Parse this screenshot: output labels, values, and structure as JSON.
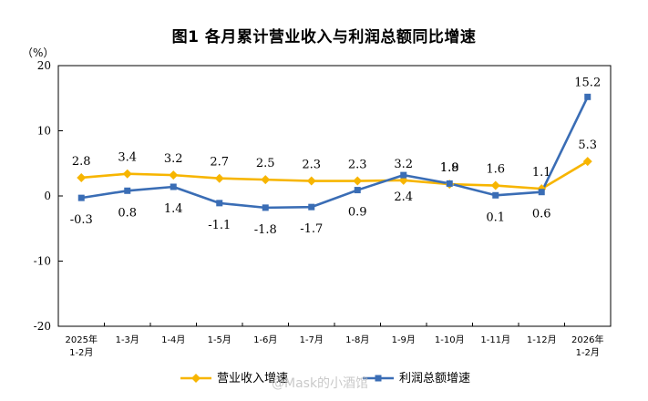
{
  "chart_data": {
    "type": "line",
    "title": "图1  各月累计营业收入与利润总额同比增速",
    "ylabel": "（%）",
    "xlabel": "",
    "ylim": [
      -20,
      20
    ],
    "yticks": [
      "20",
      "10",
      "0",
      "-10",
      "-20"
    ],
    "ytick_values": [
      20,
      10,
      0,
      -10,
      -20
    ],
    "categories": [
      "2025年\n1-2月",
      "1-3月",
      "1-4月",
      "1-5月",
      "1-6月",
      "1-7月",
      "1-8月",
      "1-9月",
      "1-10月",
      "1-11月",
      "1-12月",
      "2026年\n1-2月"
    ],
    "series": [
      {
        "name": "营业收入增速",
        "color": "#f7b500",
        "marker": "diamond",
        "values": [
          2.8,
          3.4,
          3.2,
          2.7,
          2.5,
          2.3,
          2.3,
          2.4,
          1.8,
          1.6,
          1.1,
          5.3
        ],
        "labels": [
          "2.8",
          "3.4",
          "3.2",
          "2.7",
          "2.5",
          "2.3",
          "2.3",
          "2.4",
          "1.8",
          "1.6",
          "1.1",
          "5.3"
        ]
      },
      {
        "name": "利润总额增速",
        "color": "#3a6db5",
        "marker": "square",
        "values": [
          -0.3,
          0.8,
          1.4,
          -1.1,
          -1.8,
          -1.7,
          0.9,
          3.2,
          1.9,
          0.1,
          0.6,
          15.2
        ],
        "labels": [
          "-0.3",
          "0.8",
          "1.4",
          "-1.1",
          "-1.8",
          "-1.7",
          "0.9",
          "3.2",
          "1.9",
          "0.1",
          "0.6",
          "15.2"
        ]
      }
    ],
    "legend_position": "bottom-center",
    "grid": false
  },
  "watermark": "@Mask的小酒馆"
}
